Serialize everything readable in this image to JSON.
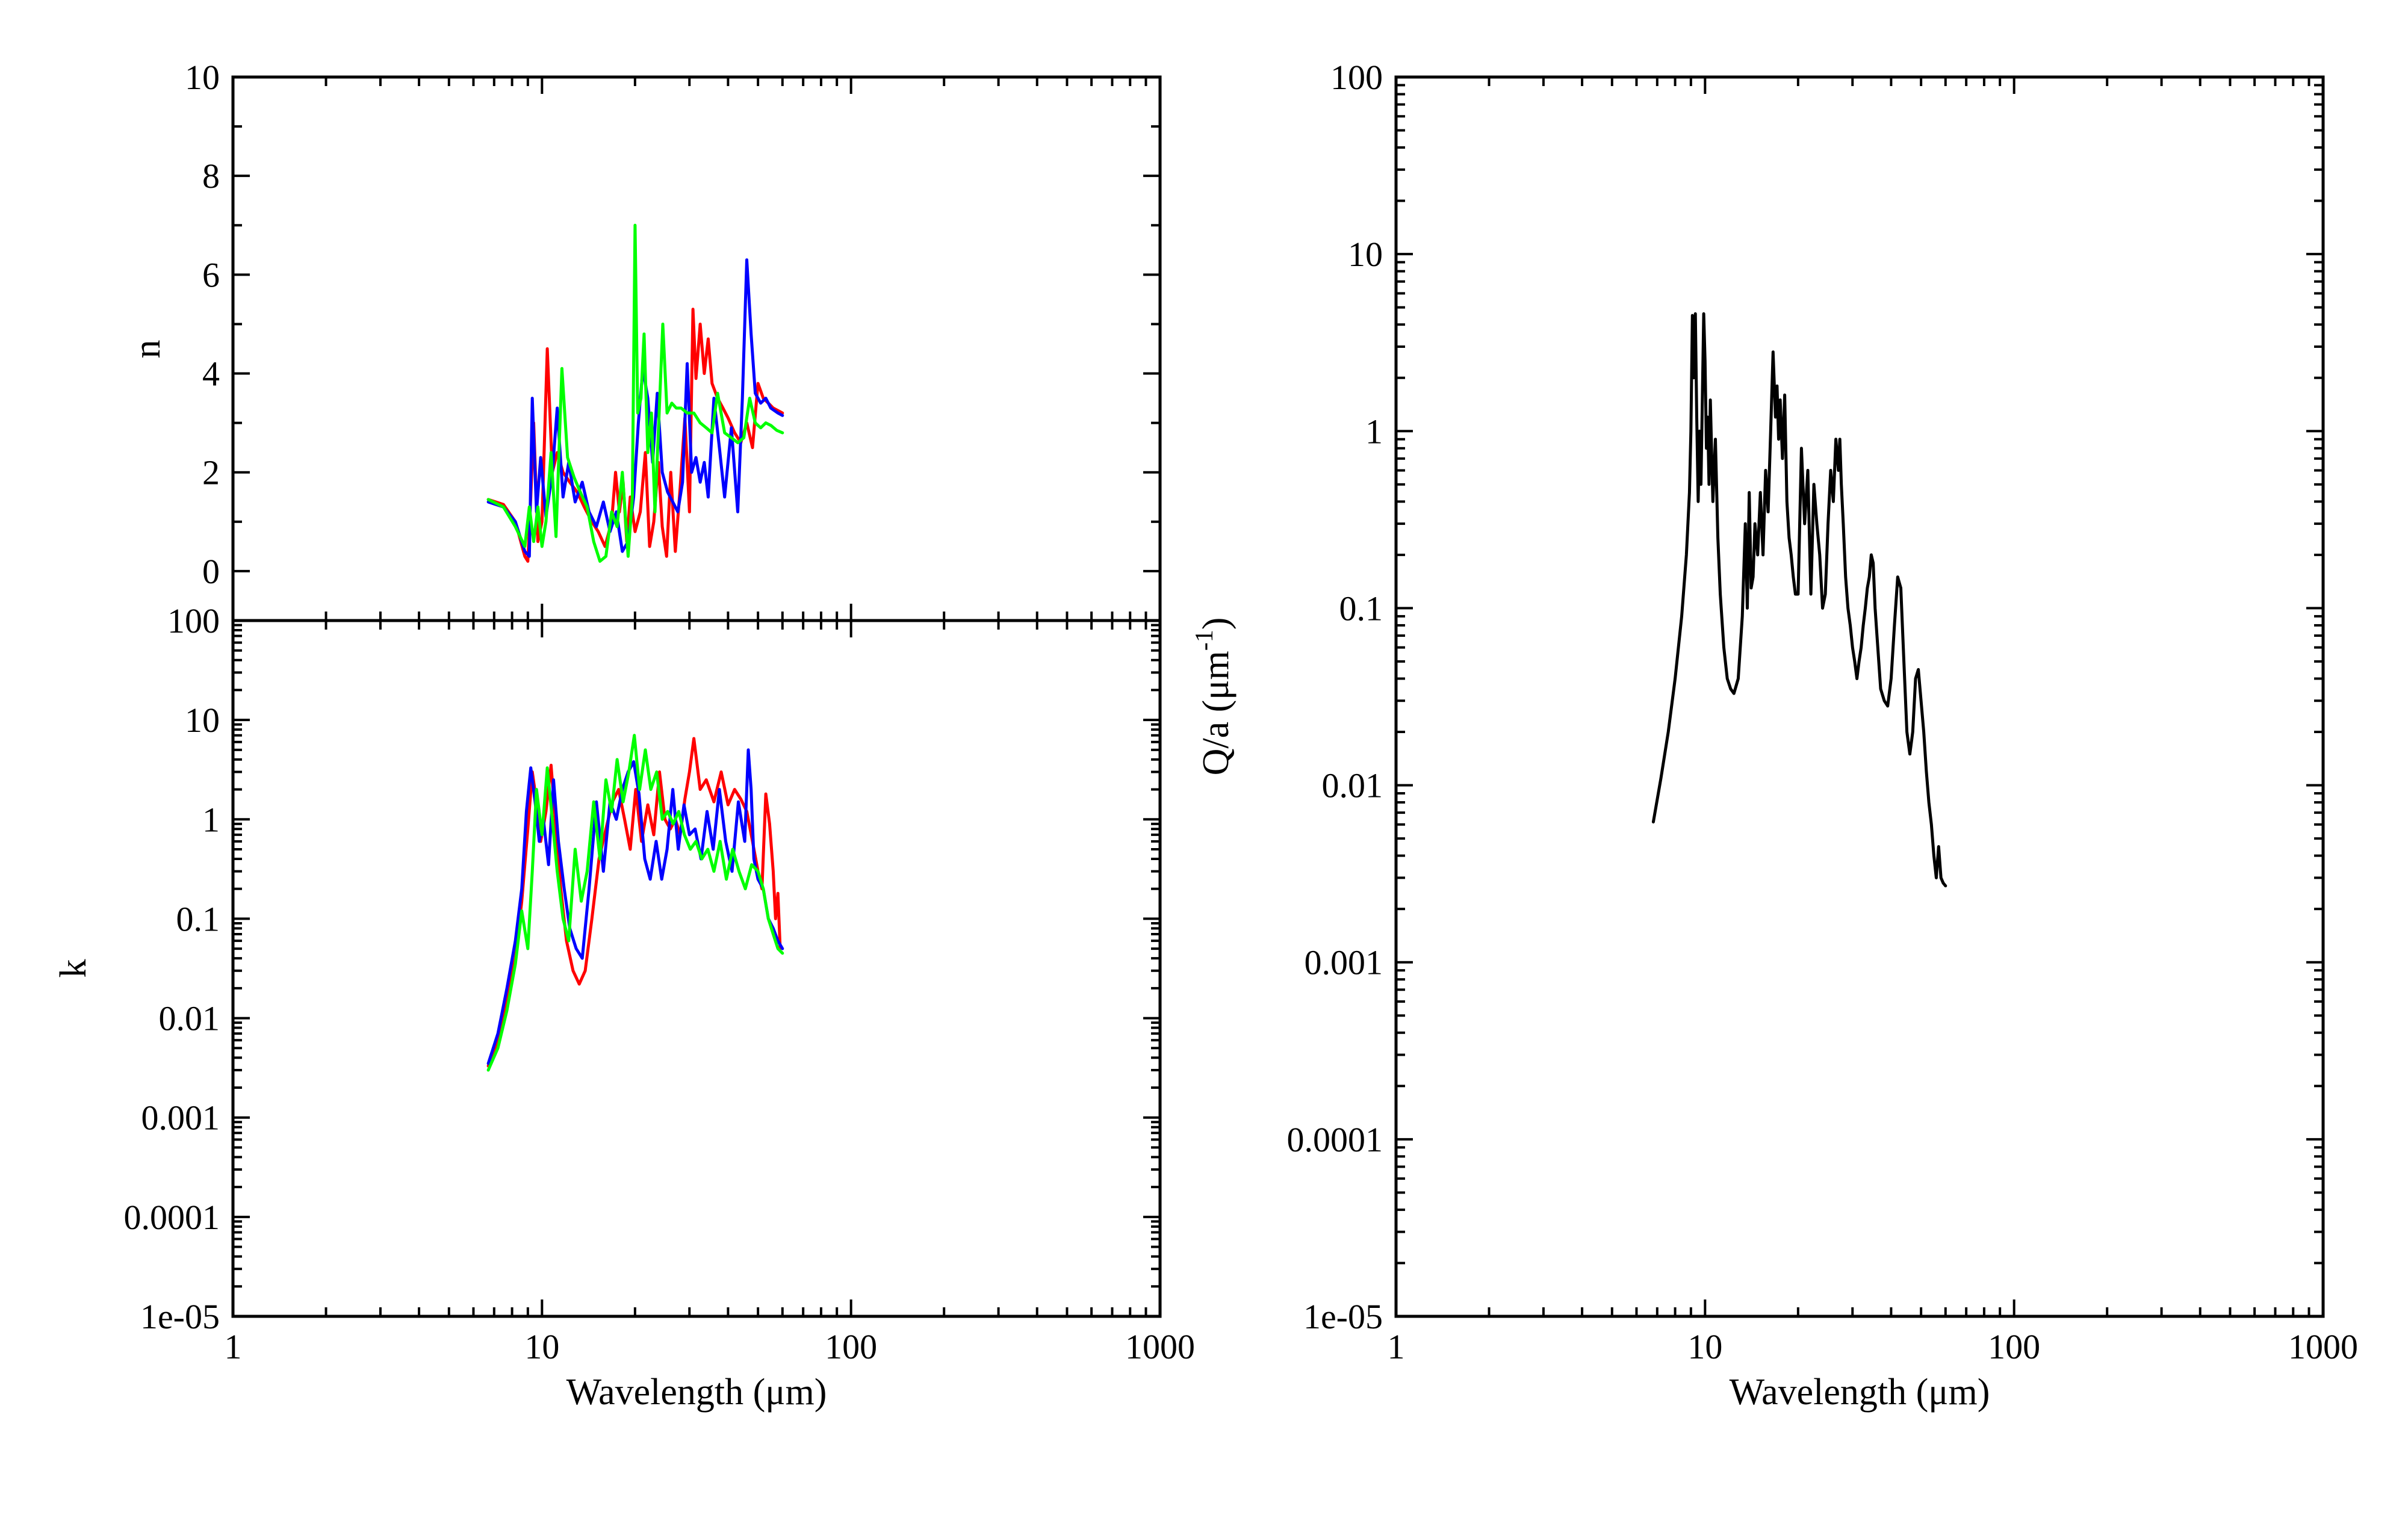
{
  "chart_data": [
    {
      "id": "n",
      "type": "line",
      "xlabel": "",
      "ylabel": "n",
      "xscale": "log",
      "yscale": "linear",
      "xlim": [
        1,
        1000
      ],
      "ylim": [
        -1,
        10
      ],
      "yticks": [
        "0",
        "2",
        "4",
        "6",
        "8",
        "10"
      ],
      "xticks": [],
      "grid": false,
      "series": [
        {
          "color": "#ff0000",
          "x": [
            6.7,
            7.5,
            8.2,
            8.8,
            9.0,
            9.2,
            9.4,
            9.7,
            10.0,
            10.4,
            10.8,
            11.2,
            11.7,
            12.3,
            13.0,
            13.7,
            14.5,
            15.2,
            16.0,
            16.8,
            17.3,
            17.8,
            18.3,
            18.8,
            19.3,
            20.0,
            20.8,
            21.6,
            22.3,
            23.0,
            23.8,
            24.5,
            25.3,
            26.1,
            27.0,
            28.0,
            29.0,
            30.0,
            30.8,
            31.5,
            32.5,
            33.5,
            34.5,
            35.5,
            37.0,
            38.5,
            40.0,
            42.0,
            44.0,
            46.0,
            48.0,
            50.0,
            52.0,
            54.0,
            56.0,
            58.0,
            60.0
          ],
          "y": [
            1.45,
            1.35,
            1.0,
            0.3,
            0.2,
            1.5,
            3.0,
            0.6,
            1.0,
            4.5,
            2.0,
            2.4,
            2.0,
            1.8,
            1.6,
            1.3,
            1.0,
            0.8,
            0.5,
            1.0,
            2.0,
            1.2,
            1.8,
            0.6,
            1.5,
            0.8,
            1.2,
            2.4,
            0.5,
            1.0,
            2.2,
            0.9,
            0.3,
            2.0,
            0.4,
            1.7,
            3.1,
            1.2,
            5.3,
            3.9,
            5.0,
            4.0,
            4.7,
            3.8,
            3.5,
            3.3,
            3.1,
            2.8,
            2.6,
            3.0,
            2.5,
            3.8,
            3.5,
            3.4,
            3.3,
            3.25,
            3.2
          ]
        },
        {
          "color": "#0000ff",
          "x": [
            6.7,
            7.5,
            8.2,
            8.8,
            9.1,
            9.3,
            9.6,
            9.9,
            10.3,
            10.8,
            11.2,
            11.7,
            12.2,
            12.8,
            13.5,
            14.2,
            15.0,
            15.8,
            16.6,
            17.4,
            18.2,
            19.0,
            19.8,
            20.5,
            21.2,
            22.0,
            22.8,
            23.6,
            24.5,
            25.5,
            26.5,
            27.5,
            28.5,
            29.5,
            30.5,
            31.5,
            32.5,
            33.5,
            34.5,
            36.0,
            37.5,
            39.0,
            41.0,
            43.0,
            44.5,
            46.0,
            47.5,
            49.0,
            51.0,
            53.0,
            55.0,
            58.0,
            60.0
          ],
          "y": [
            1.4,
            1.3,
            1.0,
            0.4,
            0.3,
            3.5,
            1.2,
            2.3,
            1.1,
            2.0,
            3.3,
            1.5,
            2.2,
            1.4,
            1.8,
            1.2,
            0.9,
            1.4,
            0.8,
            1.2,
            0.4,
            0.6,
            1.5,
            3.0,
            4.1,
            3.5,
            2.2,
            3.6,
            2.0,
            1.6,
            1.4,
            1.2,
            1.8,
            4.2,
            2.0,
            2.3,
            1.8,
            2.2,
            1.5,
            3.5,
            2.5,
            1.5,
            2.9,
            1.2,
            3.5,
            6.3,
            4.8,
            3.6,
            3.4,
            3.5,
            3.3,
            3.2,
            3.15
          ]
        },
        {
          "color": "#00ff00",
          "x": [
            6.7,
            7.5,
            8.2,
            8.8,
            9.1,
            9.4,
            9.7,
            10.0,
            10.3,
            10.7,
            11.1,
            11.6,
            12.1,
            12.7,
            13.3,
            14.0,
            14.7,
            15.4,
            16.1,
            16.8,
            17.5,
            18.2,
            19.0,
            19.6,
            20.0,
            20.4,
            20.9,
            21.4,
            22.0,
            22.6,
            23.2,
            23.9,
            24.6,
            25.4,
            26.3,
            27.2,
            28.2,
            29.5,
            31.0,
            32.5,
            34.0,
            35.5,
            37.0,
            39.0,
            41.0,
            43.0,
            45.0,
            47.0,
            49.0,
            51.0,
            53.0,
            55.0,
            57.5,
            60.0
          ],
          "y": [
            1.45,
            1.3,
            0.9,
            0.5,
            1.3,
            0.6,
            1.3,
            0.5,
            1.0,
            2.4,
            0.7,
            4.1,
            2.3,
            1.9,
            1.6,
            1.3,
            0.6,
            0.2,
            0.3,
            1.2,
            0.9,
            2.0,
            0.3,
            1.5,
            7.0,
            3.2,
            3.5,
            4.8,
            2.4,
            3.2,
            1.2,
            3.1,
            5.0,
            3.2,
            3.4,
            3.3,
            3.3,
            3.2,
            3.2,
            3.0,
            2.9,
            2.8,
            3.6,
            2.8,
            2.7,
            2.6,
            2.7,
            3.5,
            3.0,
            2.9,
            3.0,
            2.95,
            2.85,
            2.8
          ]
        }
      ]
    },
    {
      "id": "k",
      "type": "line",
      "xlabel": "Wavelength (μm)",
      "ylabel": "k",
      "xscale": "log",
      "yscale": "log",
      "xlim": [
        1,
        1000
      ],
      "ylim": [
        1e-05,
        100
      ],
      "yticks": [
        "1e-05",
        "0.0001",
        "0.001",
        "0.01",
        "0.1",
        "1",
        "10",
        "100"
      ],
      "xticks": [
        "1",
        "10",
        "100",
        "1000"
      ],
      "grid": false,
      "series": [
        {
          "color": "#ff0000",
          "x": [
            6.7,
            7.2,
            7.7,
            8.2,
            8.6,
            9.0,
            9.3,
            9.6,
            9.9,
            10.3,
            10.7,
            11.1,
            11.5,
            12.0,
            12.6,
            13.2,
            13.8,
            14.5,
            15.3,
            16.1,
            16.9,
            17.7,
            18.5,
            19.3,
            20.1,
            21.0,
            22.0,
            23.0,
            24.0,
            25.0,
            26.0,
            27.0,
            28.0,
            29.0,
            30.0,
            31.0,
            32.5,
            34.0,
            36.0,
            38.0,
            40.0,
            42.0,
            44.0,
            46.0,
            48.0,
            50.0,
            51.5,
            53.0,
            54.5,
            56.0,
            57.0,
            58.0,
            59.0
          ],
          "y": [
            0.0033,
            0.006,
            0.015,
            0.04,
            0.15,
            0.8,
            3.0,
            1.5,
            0.6,
            1.2,
            3.5,
            0.8,
            0.2,
            0.06,
            0.03,
            0.022,
            0.03,
            0.1,
            0.4,
            0.8,
            1.5,
            2.0,
            1.0,
            0.5,
            2.0,
            0.6,
            1.4,
            0.7,
            3.0,
            1.0,
            0.8,
            1.0,
            0.7,
            1.6,
            3.0,
            6.5,
            2.0,
            2.5,
            1.5,
            3.0,
            1.4,
            2.0,
            1.6,
            1.2,
            0.6,
            0.3,
            0.2,
            1.8,
            0.9,
            0.3,
            0.1,
            0.18,
            0.05
          ]
        },
        {
          "color": "#0000ff",
          "x": [
            6.7,
            7.2,
            7.7,
            8.2,
            8.6,
            8.9,
            9.2,
            9.5,
            9.8,
            10.1,
            10.5,
            10.9,
            11.3,
            11.8,
            12.3,
            12.9,
            13.5,
            14.2,
            15.0,
            15.8,
            16.6,
            17.4,
            18.2,
            19.0,
            19.8,
            20.6,
            21.5,
            22.4,
            23.4,
            24.4,
            25.4,
            26.5,
            27.6,
            28.8,
            30.0,
            31.3,
            32.7,
            34.2,
            35.8,
            37.5,
            39.3,
            41.2,
            43.2,
            45.3,
            46.5,
            47.5,
            48.5,
            50.0,
            52.0,
            54.0,
            56.0,
            58.0,
            60.0
          ],
          "y": [
            0.0035,
            0.007,
            0.02,
            0.06,
            0.2,
            1.2,
            3.3,
            1.5,
            0.6,
            1.0,
            0.35,
            2.5,
            0.6,
            0.2,
            0.08,
            0.05,
            0.04,
            0.2,
            1.5,
            0.3,
            1.5,
            1.0,
            2.0,
            3.0,
            3.8,
            1.8,
            0.4,
            0.25,
            0.6,
            0.25,
            0.5,
            2.0,
            0.5,
            1.4,
            0.7,
            0.8,
            0.4,
            1.2,
            0.5,
            2.0,
            0.6,
            0.3,
            1.5,
            0.6,
            5.0,
            2.0,
            0.4,
            0.25,
            0.2,
            0.1,
            0.08,
            0.06,
            0.05
          ]
        },
        {
          "color": "#00ff00",
          "x": [
            6.7,
            7.2,
            7.7,
            8.2,
            8.6,
            9.0,
            9.3,
            9.6,
            10.0,
            10.4,
            10.8,
            11.2,
            11.7,
            12.2,
            12.8,
            13.4,
            14.0,
            14.7,
            15.4,
            16.1,
            16.8,
            17.5,
            18.3,
            19.1,
            19.9,
            20.7,
            21.6,
            22.5,
            23.5,
            24.5,
            25.5,
            26.6,
            27.7,
            28.9,
            30.2,
            31.5,
            32.9,
            34.4,
            36.0,
            37.7,
            39.5,
            41.4,
            43.4,
            45.5,
            47.7,
            50.0,
            52.0,
            54.0,
            56.0,
            58.0,
            60.0
          ],
          "y": [
            0.003,
            0.005,
            0.012,
            0.035,
            0.12,
            0.05,
            0.3,
            2.0,
            0.7,
            3.3,
            1.0,
            0.3,
            0.1,
            0.06,
            0.5,
            0.15,
            0.3,
            1.5,
            0.4,
            2.5,
            1.2,
            4.0,
            1.5,
            3.0,
            7.0,
            2.0,
            5.0,
            2.0,
            3.0,
            1.0,
            1.2,
            0.9,
            1.2,
            0.7,
            0.5,
            0.6,
            0.4,
            0.5,
            0.3,
            0.6,
            0.25,
            0.5,
            0.3,
            0.2,
            0.35,
            0.3,
            0.2,
            0.1,
            0.07,
            0.05,
            0.045
          ]
        }
      ]
    },
    {
      "id": "qa",
      "type": "line",
      "xlabel": "Wavelength (μm)",
      "ylabel": "Q/a (μm",
      "ylabel_sup": "-1",
      "ylabel_end": ")",
      "xscale": "log",
      "yscale": "log",
      "xlim": [
        1,
        1000
      ],
      "ylim": [
        1e-05,
        100
      ],
      "yticks": [
        "1e-05",
        "0.0001",
        "0.001",
        "0.01",
        "0.1",
        "1",
        "10",
        "100"
      ],
      "xticks": [
        "1",
        "10",
        "100",
        "1000"
      ],
      "grid": false,
      "series": [
        {
          "color": "#000000",
          "x": [
            6.8,
            7.2,
            7.6,
            8.0,
            8.4,
            8.7,
            8.9,
            9.0,
            9.1,
            9.2,
            9.3,
            9.4,
            9.5,
            9.6,
            9.7,
            9.8,
            9.9,
            10.0,
            10.1,
            10.2,
            10.3,
            10.4,
            10.6,
            10.8,
            11.0,
            11.2,
            11.5,
            11.8,
            12.1,
            12.4,
            12.8,
            13.2,
            13.5,
            13.7,
            13.9,
            14.1,
            14.3,
            14.5,
            14.8,
            15.1,
            15.4,
            15.7,
            16.0,
            16.3,
            16.6,
            16.9,
            17.1,
            17.3,
            17.5,
            17.8,
            18.1,
            18.4,
            18.7,
            19.0,
            19.3,
            19.6,
            20.0,
            20.5,
            21.0,
            21.5,
            22.0,
            22.5,
            23.0,
            23.5,
            24.0,
            24.5,
            25.0,
            25.5,
            26.0,
            26.5,
            27.0,
            27.3,
            27.6,
            28.0,
            28.5,
            29.0,
            29.5,
            30.0,
            30.5,
            31.0,
            31.5,
            32.0,
            32.5,
            33.0,
            33.5,
            34.0,
            34.5,
            35.0,
            35.5,
            36.0,
            37.0,
            38.0,
            39.0,
            40.0,
            41.0,
            42.0,
            43.0,
            44.0,
            45.0,
            46.0,
            47.0,
            48.0,
            49.0,
            50.0,
            51.0,
            52.0,
            53.0,
            54.0,
            55.0,
            56.0,
            57.0,
            58.0,
            59.0,
            60.0
          ],
          "y": [
            0.0062,
            0.011,
            0.02,
            0.04,
            0.09,
            0.2,
            0.45,
            1.0,
            4.5,
            2.0,
            4.6,
            1.2,
            0.4,
            1.0,
            0.5,
            1.5,
            4.6,
            2.5,
            0.8,
            1.2,
            0.5,
            1.5,
            0.4,
            0.9,
            0.25,
            0.12,
            0.06,
            0.04,
            0.035,
            0.033,
            0.04,
            0.09,
            0.3,
            0.1,
            0.45,
            0.13,
            0.15,
            0.3,
            0.2,
            0.45,
            0.2,
            0.6,
            0.35,
            1.0,
            2.8,
            1.2,
            1.8,
            0.9,
            1.5,
            0.7,
            1.6,
            0.4,
            0.25,
            0.2,
            0.15,
            0.12,
            0.12,
            0.8,
            0.3,
            0.6,
            0.12,
            0.5,
            0.3,
            0.2,
            0.1,
            0.12,
            0.3,
            0.6,
            0.4,
            0.9,
            0.6,
            0.9,
            0.5,
            0.3,
            0.15,
            0.1,
            0.08,
            0.06,
            0.05,
            0.04,
            0.05,
            0.06,
            0.08,
            0.1,
            0.13,
            0.15,
            0.2,
            0.18,
            0.1,
            0.07,
            0.035,
            0.03,
            0.028,
            0.04,
            0.08,
            0.15,
            0.13,
            0.05,
            0.02,
            0.015,
            0.02,
            0.04,
            0.045,
            0.03,
            0.02,
            0.012,
            0.008,
            0.006,
            0.004,
            0.003,
            0.0045,
            0.003,
            0.0028,
            0.0027
          ]
        }
      ]
    }
  ]
}
